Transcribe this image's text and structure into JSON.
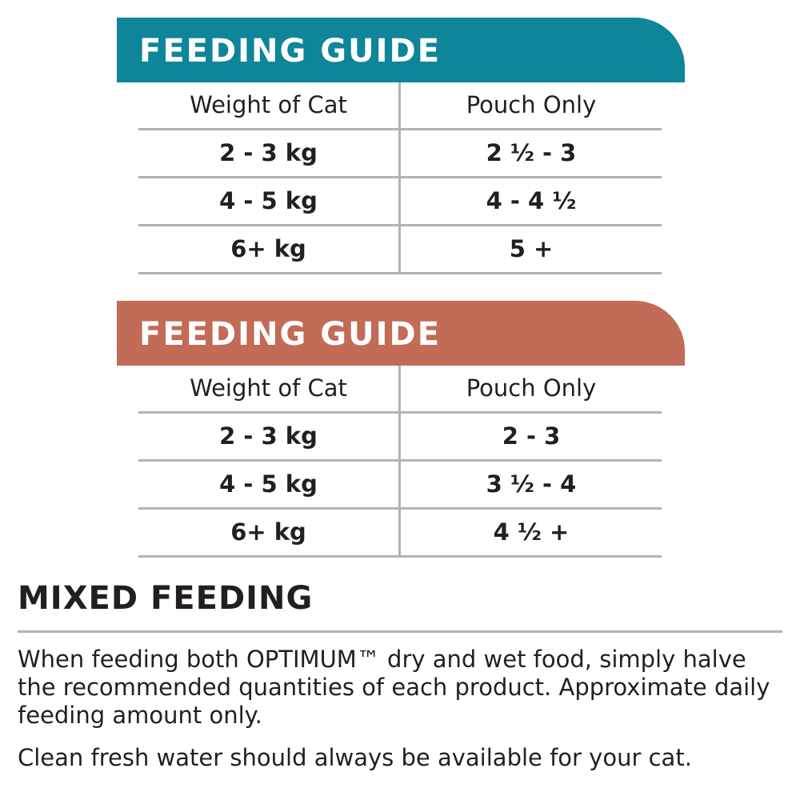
{
  "colors": {
    "guide_1_header": "#0e8599",
    "guide_2_header": "#c26b56",
    "text": "#231f20",
    "rule": "#b3b3b3"
  },
  "guides": [
    {
      "title": "FEEDING GUIDE",
      "columns": [
        "Weight of Cat",
        "Pouch Only"
      ],
      "rows": [
        [
          "2 - 3 kg",
          "2 ½ - 3"
        ],
        [
          "4 - 5 kg",
          "4 - 4 ½"
        ],
        [
          "6+ kg",
          "5 +"
        ]
      ]
    },
    {
      "title": "FEEDING GUIDE",
      "columns": [
        "Weight of Cat",
        "Pouch Only"
      ],
      "rows": [
        [
          "2 - 3 kg",
          "2 - 3"
        ],
        [
          "4 - 5 kg",
          "3 ½ - 4"
        ],
        [
          "6+ kg",
          "4 ½ +"
        ]
      ]
    }
  ],
  "mixed_feeding": {
    "title": "MIXED FEEDING",
    "paragraph_1": "When feeding both OPTIMUM™ dry and wet food, simply halve the recommended quantities of each product. Approximate daily feeding amount only.",
    "paragraph_2": "Clean fresh water should always be available for your cat."
  }
}
